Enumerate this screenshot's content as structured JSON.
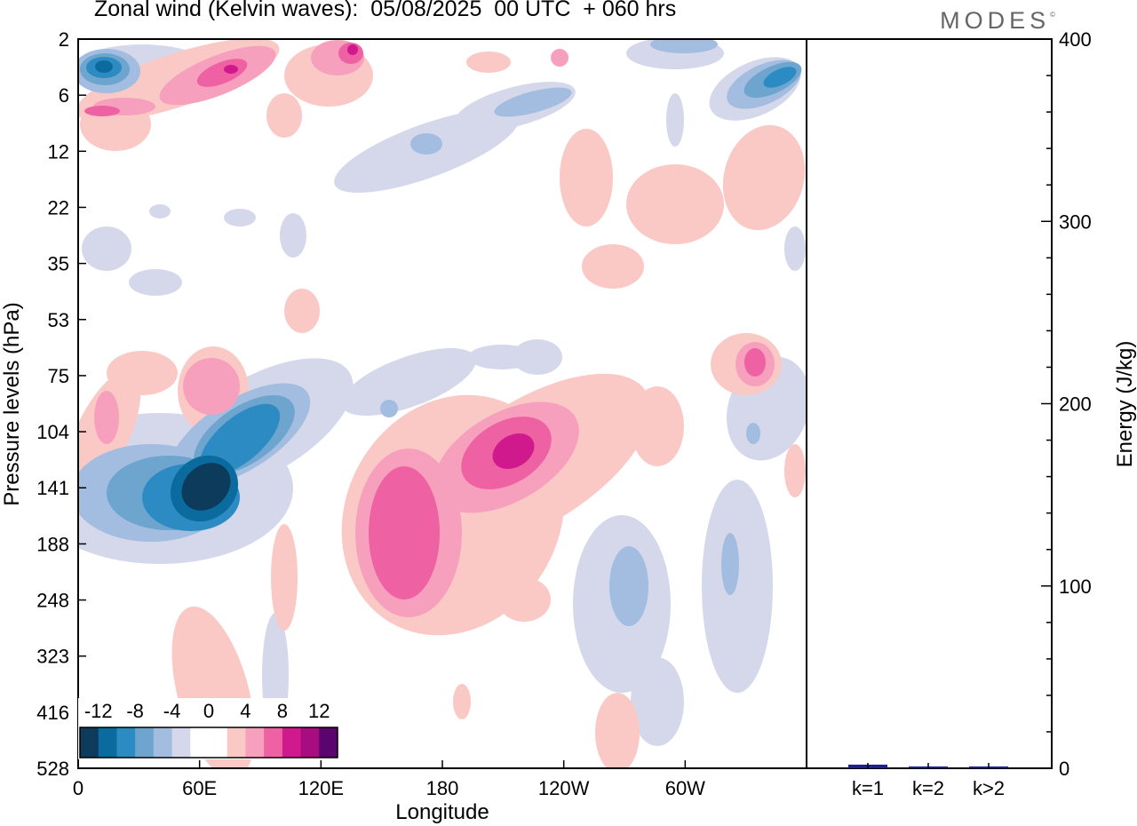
{
  "header": {
    "title": "Zonal wind (Kelvin waves):  05/08/2025  00 UTC  + 060 hrs",
    "brand": "MODES",
    "brand_mark": "©"
  },
  "chart_data": [
    {
      "type": "heatmap",
      "title": "Zonal wind (Kelvin waves):  05/08/2025  00 UTC  + 060 hrs",
      "xlabel": "Longitude",
      "ylabel": "Pressure levels (hPa)",
      "x_ticks": [
        "0",
        "60E",
        "120E",
        "180",
        "120W",
        "60W"
      ],
      "y_ticks": [
        "2",
        "6",
        "12",
        "22",
        "35",
        "53",
        "75",
        "104",
        "141",
        "188",
        "248",
        "323",
        "416",
        "528"
      ],
      "colorbar": {
        "labels": [
          "-12",
          "-8",
          "-4",
          "0",
          "4",
          "8",
          "12"
        ],
        "colors": [
          "#0d3b5c",
          "#0b6a9e",
          "#2d8bc4",
          "#6ea5cf",
          "#a3bde0",
          "#d4d8ea",
          "#ffffff",
          "#ffffff",
          "#fac9c6",
          "#f7a0bd",
          "#ee61a3",
          "#d0198c",
          "#a80d7f",
          "#5a046e"
        ]
      },
      "features": [
        {
          "name": "blob-easterly-upper-0E",
          "sign": "negative",
          "lon_deg": 15,
          "level": "4 hPa",
          "peak": -10
        },
        {
          "name": "blob-westerly-upper-70E",
          "sign": "positive",
          "lon_deg": 70,
          "level": "5 hPa",
          "peak": 8
        },
        {
          "name": "blob-westerly-upper-130E",
          "sign": "positive",
          "lon_deg": 130,
          "level": "3 hPa",
          "peak": 8
        },
        {
          "name": "blob-easterly-upper-330E",
          "sign": "negative",
          "lon_deg": 350,
          "level": "5 hPa",
          "peak": -8
        },
        {
          "name": "blob-easterly-141hPa-60E",
          "sign": "negative",
          "lon_deg": 60,
          "level": "141 hPa",
          "peak": -14
        },
        {
          "name": "blob-westerly-188hPa-160E",
          "sign": "positive",
          "lon_deg": 160,
          "level": "188 hPa",
          "peak": 8
        },
        {
          "name": "blob-westerly-118hPa-205E",
          "sign": "positive",
          "lon_deg": 205,
          "level": "118 hPa",
          "peak": 10
        },
        {
          "name": "blob-westerly-75hPa-330E",
          "sign": "positive",
          "lon_deg": 335,
          "level": "75 hPa",
          "peak": 8
        }
      ]
    },
    {
      "type": "bar",
      "ylabel": "Energy (J/kg)",
      "categories": [
        "k=1",
        "k=2",
        "k>2"
      ],
      "values": [
        2,
        1,
        1
      ],
      "ylim": [
        0,
        400
      ],
      "y_ticks": [
        "0",
        "100",
        "200",
        "300",
        "400"
      ],
      "bar_color": "#1f1f8f"
    }
  ]
}
